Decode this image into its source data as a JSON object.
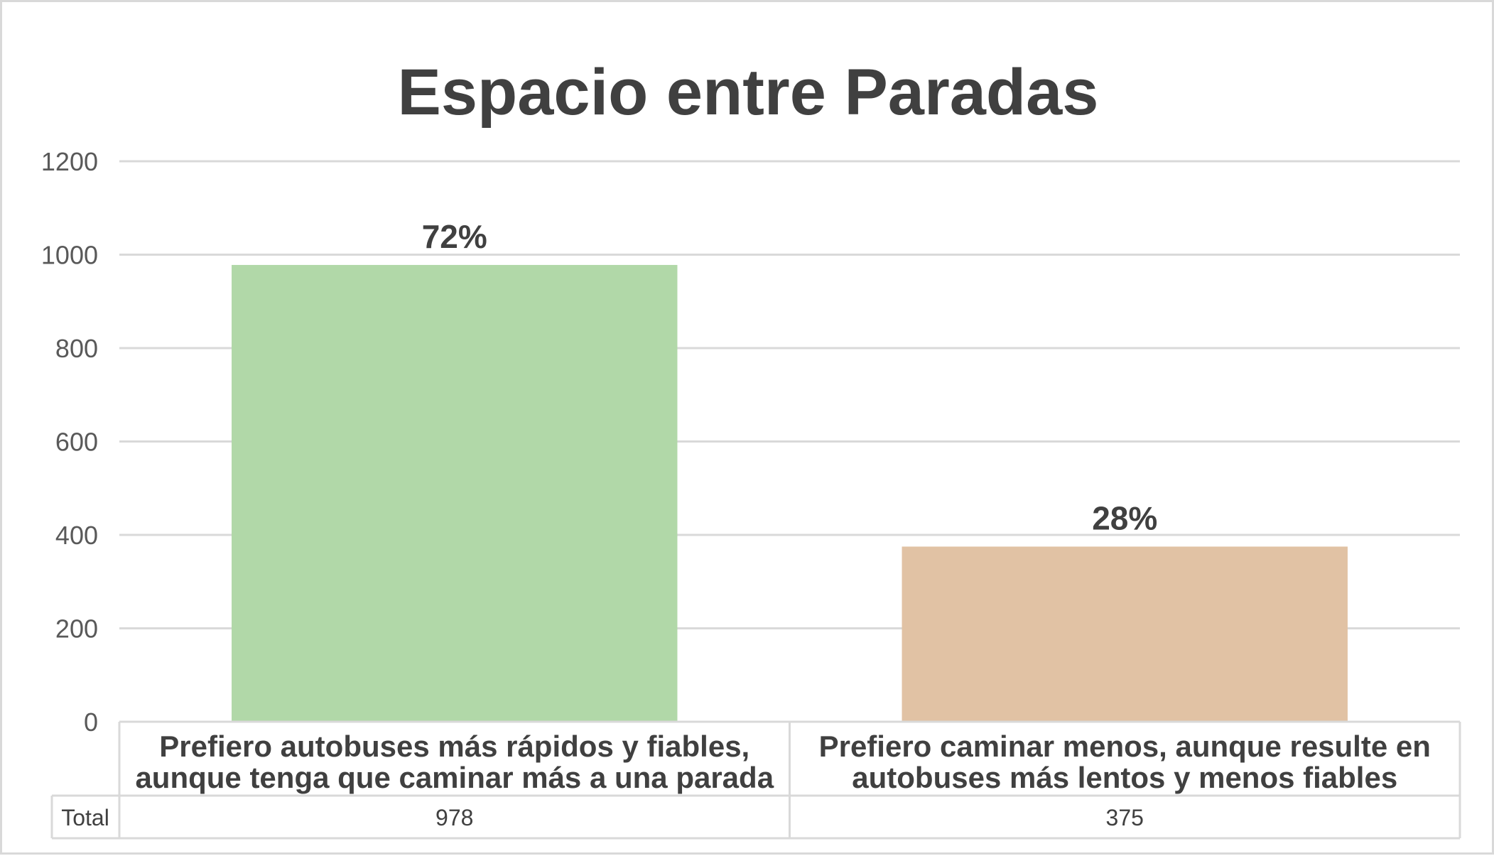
{
  "chart_data": {
    "type": "bar",
    "title": "Espacio entre Paradas",
    "categories": [
      [
        "Prefiero autobuses más rápidos y fiables,",
        "aunque tenga que caminar más a una parada"
      ],
      [
        "Prefiero caminar menos, aunque resulte en",
        "autobuses más lentos y menos fiables"
      ]
    ],
    "series": [
      {
        "values": [
          978,
          375
        ]
      }
    ],
    "data_labels": [
      "72%",
      "28%"
    ],
    "bar_colors": [
      "#b1d8a8",
      "#e1c2a4"
    ],
    "yticks": [
      "0",
      "200",
      "400",
      "600",
      "800",
      "1000",
      "1200"
    ],
    "ylim": [
      0,
      1200
    ],
    "grid": true,
    "legend": "none",
    "table": {
      "row_label": "Total",
      "values": [
        "978",
        "375"
      ]
    }
  }
}
